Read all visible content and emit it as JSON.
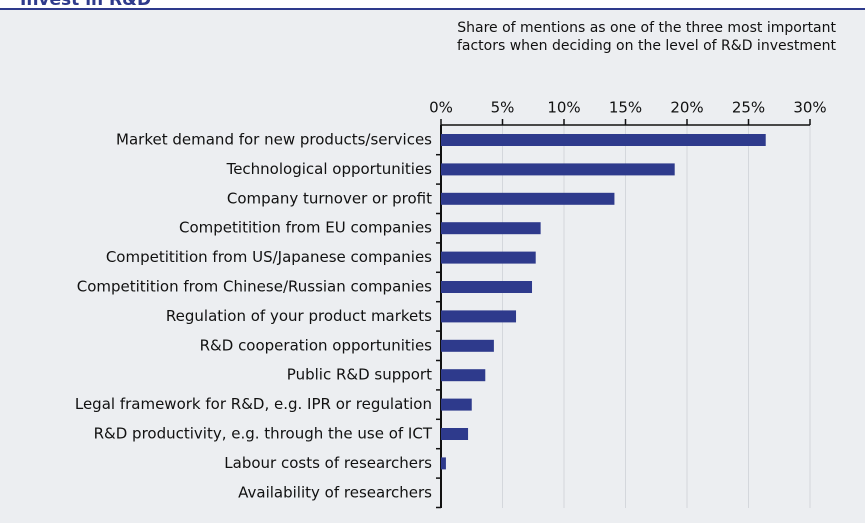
{
  "chart_data": {
    "type": "barh",
    "title": "Invest in R&D",
    "subtitle": [
      "Share of mentions as one of the three most important",
      "factors when deciding on the level of R&D investment"
    ],
    "categories": [
      "Market demand for new products/services",
      "Technological opportunities",
      "Company turnover or profit",
      "Competitition from EU companies",
      "Competitition from US/Japanese companies",
      "Competitition from Chinese/Russian companies",
      "Regulation of your product markets",
      "R&D cooperation opportunities",
      "Public R&D support",
      "Legal framework for R&D, e.g. IPR or regulation",
      "R&D productivity, e.g. through the use of ICT",
      "Labour costs of researchers",
      "Availability of researchers"
    ],
    "values": [
      26.4,
      19.0,
      14.1,
      8.1,
      7.7,
      7.4,
      6.1,
      4.3,
      3.6,
      2.5,
      2.2,
      0.4,
      0
    ],
    "color": "#2e3a8c",
    "xlim": [
      0,
      30
    ],
    "xticks": [
      {
        "value": 0,
        "label": "0%"
      },
      {
        "value": 5,
        "label": "5%"
      },
      {
        "value": 10,
        "label": "10%"
      },
      {
        "value": 15,
        "label": "15%"
      },
      {
        "value": 20,
        "label": "20%"
      },
      {
        "value": 25,
        "label": "25%"
      },
      {
        "value": 30,
        "label": "30%"
      }
    ],
    "grid": true
  }
}
